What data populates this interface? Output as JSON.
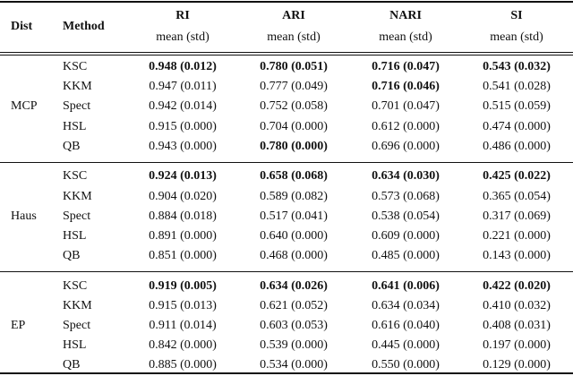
{
  "table": {
    "header": {
      "dist": "Dist",
      "method": "Method",
      "metrics": [
        {
          "name": "RI",
          "sub": "mean (std)"
        },
        {
          "name": "ARI",
          "sub": "mean (std)"
        },
        {
          "name": "NARI",
          "sub": "mean (std)"
        },
        {
          "name": "SI",
          "sub": "mean (std)"
        }
      ]
    },
    "groups": [
      {
        "name": "MCP",
        "rows": [
          {
            "method": "KSC",
            "cells": [
              "0.948 (0.012)",
              "0.780 (0.051)",
              "0.716 (0.047)",
              "0.543 (0.032)"
            ],
            "bold": [
              true,
              true,
              true,
              true
            ]
          },
          {
            "method": "KKM",
            "cells": [
              "0.947 (0.011)",
              "0.777 (0.049)",
              "0.716 (0.046)",
              "0.541 (0.028)"
            ],
            "bold": [
              false,
              false,
              true,
              false
            ]
          },
          {
            "method": "Spect",
            "cells": [
              "0.942 (0.014)",
              "0.752 (0.058)",
              "0.701 (0.047)",
              "0.515 (0.059)"
            ],
            "bold": [
              false,
              false,
              false,
              false
            ]
          },
          {
            "method": "HSL",
            "cells": [
              "0.915 (0.000)",
              "0.704 (0.000)",
              "0.612 (0.000)",
              "0.474 (0.000)"
            ],
            "bold": [
              false,
              false,
              false,
              false
            ]
          },
          {
            "method": "QB",
            "cells": [
              "0.943 (0.000)",
              "0.780 (0.000)",
              "0.696 (0.000)",
              "0.486 (0.000)"
            ],
            "bold": [
              false,
              true,
              false,
              false
            ]
          }
        ]
      },
      {
        "name": "Haus",
        "rows": [
          {
            "method": "KSC",
            "cells": [
              "0.924 (0.013)",
              "0.658 (0.068)",
              "0.634 (0.030)",
              "0.425 (0.022)"
            ],
            "bold": [
              true,
              true,
              true,
              true
            ]
          },
          {
            "method": "KKM",
            "cells": [
              "0.904 (0.020)",
              "0.589 (0.082)",
              "0.573 (0.068)",
              "0.365 (0.054)"
            ],
            "bold": [
              false,
              false,
              false,
              false
            ]
          },
          {
            "method": "Spect",
            "cells": [
              "0.884 (0.018)",
              "0.517 (0.041)",
              "0.538 (0.054)",
              "0.317 (0.069)"
            ],
            "bold": [
              false,
              false,
              false,
              false
            ]
          },
          {
            "method": "HSL",
            "cells": [
              "0.891 (0.000)",
              "0.640 (0.000)",
              "0.609 (0.000)",
              "0.221 (0.000)"
            ],
            "bold": [
              false,
              false,
              false,
              false
            ]
          },
          {
            "method": "QB",
            "cells": [
              "0.851 (0.000)",
              "0.468 (0.000)",
              "0.485 (0.000)",
              "0.143 (0.000)"
            ],
            "bold": [
              false,
              false,
              false,
              false
            ]
          }
        ]
      },
      {
        "name": "EP",
        "rows": [
          {
            "method": "KSC",
            "cells": [
              "0.919 (0.005)",
              "0.634 (0.026)",
              "0.641 (0.006)",
              "0.422 (0.020)"
            ],
            "bold": [
              true,
              true,
              true,
              true
            ]
          },
          {
            "method": "KKM",
            "cells": [
              "0.915 (0.013)",
              "0.621 (0.052)",
              "0.634 (0.034)",
              "0.410 (0.032)"
            ],
            "bold": [
              false,
              false,
              false,
              false
            ]
          },
          {
            "method": "Spect",
            "cells": [
              "0.911 (0.014)",
              "0.603 (0.053)",
              "0.616 (0.040)",
              "0.408 (0.031)"
            ],
            "bold": [
              false,
              false,
              false,
              false
            ]
          },
          {
            "method": "HSL",
            "cells": [
              "0.842 (0.000)",
              "0.539 (0.000)",
              "0.445 (0.000)",
              "0.197 (0.000)"
            ],
            "bold": [
              false,
              false,
              false,
              false
            ]
          },
          {
            "method": "QB",
            "cells": [
              "0.885 (0.000)",
              "0.534 (0.000)",
              "0.550 (0.000)",
              "0.129 (0.000)"
            ],
            "bold": [
              false,
              false,
              false,
              false
            ]
          }
        ]
      }
    ]
  }
}
